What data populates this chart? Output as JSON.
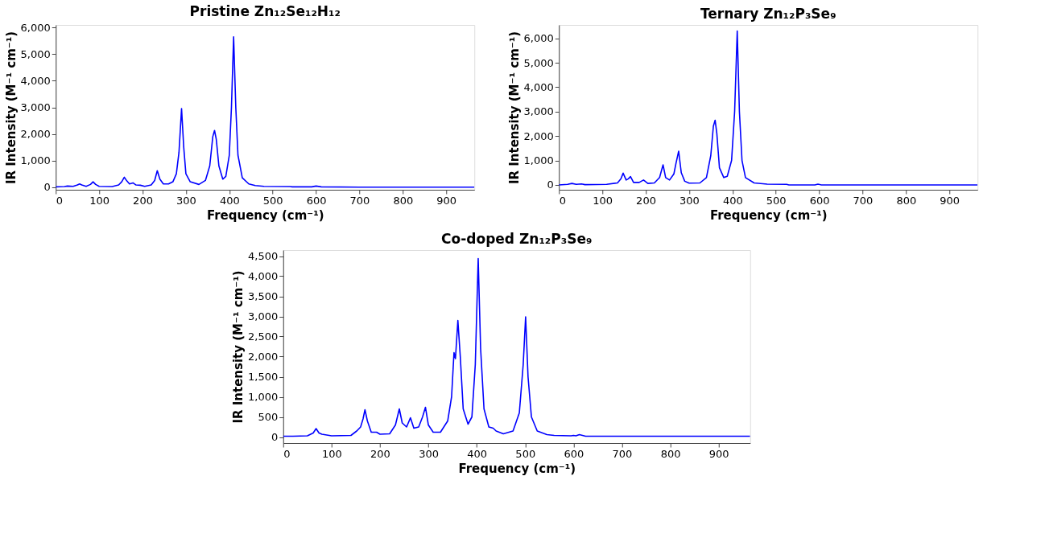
{
  "chart_data": [
    {
      "type": "line",
      "title": "Pristine Zn₁₂Se₁₂H₁₂",
      "xlabel": "Frequency (cm⁻¹)",
      "ylabel": "IR Intensity (M⁻¹ cm⁻¹)",
      "xlim": [
        0,
        965
      ],
      "xticks": [
        0,
        100,
        200,
        300,
        400,
        500,
        600,
        700,
        800,
        900
      ],
      "ylim": [
        -100,
        6100
      ],
      "yticks": [
        0,
        {
          "value": 1000,
          "label": "1,000"
        },
        {
          "value": 2000,
          "label": "2,000"
        },
        {
          "value": 3000,
          "label": "3,000"
        },
        {
          "value": 4000,
          "label": "4,000"
        },
        {
          "value": 5000,
          "label": "5,000"
        },
        {
          "value": 6000,
          "label": "6,000"
        }
      ],
      "grid": false,
      "marker": "none",
      "line_style": "solid",
      "series": [
        {
          "color": "#0000ff",
          "x": [
            0,
            20,
            27,
            40,
            50,
            55,
            60,
            70,
            80,
            86,
            92,
            100,
            130,
            145,
            152,
            158,
            164,
            170,
            178,
            185,
            195,
            205,
            220,
            228,
            234,
            240,
            248,
            260,
            270,
            278,
            284,
            290,
            295,
            300,
            310,
            330,
            345,
            355,
            362,
            366,
            370,
            376,
            385,
            392,
            400,
            405,
            410,
            415,
            420,
            430,
            445,
            460,
            480,
            540,
            545,
            590,
            600,
            612,
            700,
            965
          ],
          "values": [
            10,
            20,
            40,
            30,
            80,
            120,
            80,
            30,
            100,
            200,
            100,
            30,
            20,
            80,
            200,
            370,
            230,
            120,
            160,
            80,
            70,
            30,
            80,
            250,
            620,
            300,
            120,
            120,
            200,
            500,
            1300,
            2950,
            1500,
            500,
            200,
            100,
            250,
            800,
            1900,
            2130,
            1800,
            800,
            300,
            400,
            1200,
            3000,
            5650,
            3000,
            1200,
            350,
            120,
            60,
            30,
            20,
            10,
            10,
            40,
            10,
            0,
            0
          ]
        }
      ]
    },
    {
      "type": "line",
      "title": "Ternary Zn₁₂P₃Se₉",
      "xlabel": "Frequency (cm⁻¹)",
      "ylabel": "IR Intensity (M⁻¹ cm⁻¹)",
      "xlim": [
        0,
        965
      ],
      "xticks": [
        0,
        100,
        200,
        300,
        400,
        500,
        600,
        700,
        800,
        900
      ],
      "ylim": [
        -200,
        6550
      ],
      "yticks": [
        0,
        {
          "value": 1000,
          "label": "1,000"
        },
        {
          "value": 2000,
          "label": "2,000"
        },
        {
          "value": 3000,
          "label": "3,000"
        },
        {
          "value": 4000,
          "label": "4,000"
        },
        {
          "value": 5000,
          "label": "5,000"
        },
        {
          "value": 6000,
          "label": "6,000"
        }
      ],
      "grid": false,
      "marker": "none",
      "line_style": "solid",
      "series": [
        {
          "color": "#0000ff",
          "x": [
            0,
            20,
            30,
            40,
            52,
            60,
            110,
            135,
            143,
            148,
            155,
            160,
            165,
            172,
            185,
            195,
            205,
            220,
            232,
            240,
            246,
            255,
            265,
            270,
            276,
            282,
            290,
            300,
            325,
            340,
            350,
            356,
            360,
            364,
            370,
            380,
            388,
            398,
            405,
            411,
            416,
            422,
            430,
            450,
            480,
            525,
            530,
            590,
            597,
            605,
            965
          ],
          "values": [
            0,
            20,
            60,
            20,
            40,
            10,
            20,
            80,
            250,
            480,
            200,
            250,
            340,
            100,
            100,
            200,
            60,
            80,
            300,
            820,
            300,
            200,
            450,
            900,
            1380,
            500,
            150,
            70,
            80,
            300,
            1200,
            2400,
            2650,
            2100,
            700,
            300,
            350,
            1000,
            3000,
            6300,
            3000,
            1000,
            300,
            80,
            30,
            20,
            0,
            0,
            30,
            0,
            0
          ]
        }
      ]
    },
    {
      "type": "line",
      "title": "Co-doped Zn₁₂P₃Se₉",
      "xlabel": "Frequency (cm⁻¹)",
      "ylabel": "IR Intensity (M⁻¹ cm⁻¹)",
      "xlim": [
        0,
        965
      ],
      "xticks": [
        0,
        100,
        200,
        300,
        400,
        500,
        600,
        700,
        800,
        900
      ],
      "ylim": [
        -150,
        4650
      ],
      "yticks": [
        0,
        500,
        {
          "value": 1000,
          "label": "1,000"
        },
        {
          "value": 1500,
          "label": "1,500"
        },
        {
          "value": 2000,
          "label": "2,000"
        },
        {
          "value": 2500,
          "label": "2,500"
        },
        {
          "value": 3000,
          "label": "3,000"
        },
        {
          "value": 3500,
          "label": "3,500"
        },
        {
          "value": 4000,
          "label": "4,000"
        },
        {
          "value": 4500,
          "label": "4,500"
        }
      ],
      "grid": false,
      "marker": "none",
      "line_style": "solid",
      "series": [
        {
          "color": "#0000ff",
          "x": [
            0,
            20,
            50,
            62,
            68,
            74,
            80,
            90,
            100,
            140,
            152,
            160,
            165,
            169,
            174,
            182,
            193,
            200,
            220,
            232,
            240,
            246,
            255,
            263,
            270,
            280,
            288,
            294,
            300,
            310,
            325,
            340,
            348,
            353,
            356,
            361,
            366,
            372,
            382,
            390,
            397,
            403,
            408,
            415,
            425,
            434,
            440,
            455,
            475,
            488,
            496,
            501,
            506,
            513,
            525,
            545,
            560,
            595,
            600,
            605,
            612,
            625,
            965
          ],
          "values": [
            20,
            20,
            30,
            100,
            210,
            100,
            70,
            50,
            30,
            40,
            150,
            250,
            450,
            680,
            400,
            120,
            120,
            70,
            80,
            300,
            700,
            350,
            250,
            480,
            220,
            250,
            500,
            740,
            300,
            120,
            120,
            400,
            1000,
            2100,
            1950,
            2900,
            2000,
            700,
            320,
            500,
            1800,
            4440,
            2200,
            700,
            250,
            220,
            150,
            80,
            150,
            600,
            1800,
            2990,
            1500,
            500,
            150,
            60,
            40,
            30,
            40,
            30,
            60,
            20,
            20
          ]
        }
      ]
    }
  ]
}
